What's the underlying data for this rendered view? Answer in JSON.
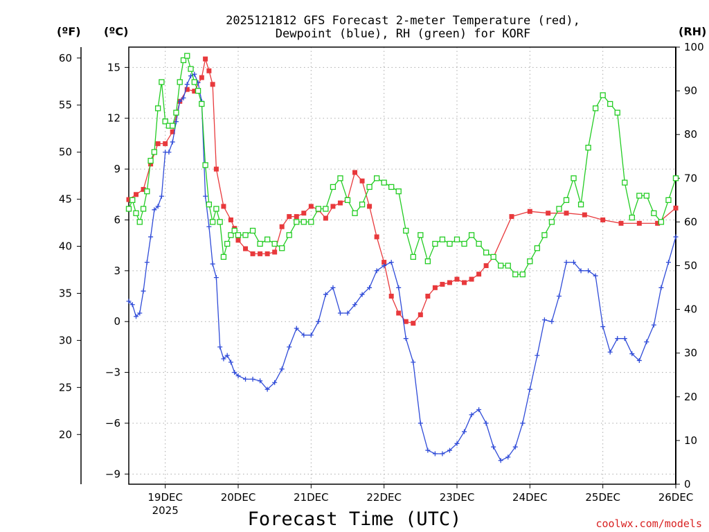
{
  "chart_data": {
    "type": "line",
    "title_line1": "2025121812 GFS Forecast 2-meter Temperature (red),",
    "title_line2": "Dewpoint (blue), RH (green) for KORF",
    "xlabel": "Forecast Time (UTC)",
    "credit": "coolwx.com/models",
    "unit_f": "(ºF)",
    "unit_c": "(ºC)",
    "unit_rh": "(RH)",
    "xlim": [
      -0.5,
      7.0
    ],
    "ylim_c": [
      -9.6,
      16.2
    ],
    "ylim_rh": [
      0,
      100
    ],
    "x_ticks": [
      {
        "x": 0,
        "label": "19DEC",
        "sub": "2025"
      },
      {
        "x": 1,
        "label": "20DEC",
        "sub": ""
      },
      {
        "x": 2,
        "label": "21DEC",
        "sub": ""
      },
      {
        "x": 3,
        "label": "22DEC",
        "sub": ""
      },
      {
        "x": 4,
        "label": "23DEC",
        "sub": ""
      },
      {
        "x": 5,
        "label": "24DEC",
        "sub": ""
      },
      {
        "x": 6,
        "label": "25DEC",
        "sub": ""
      },
      {
        "x": 7,
        "label": "26DEC",
        "sub": ""
      }
    ],
    "y_ticks_c": [
      -9,
      -6,
      -3,
      0,
      3,
      6,
      9,
      12,
      15
    ],
    "y_ticks_c_labels": [
      "−9",
      "−6",
      "−3",
      "0",
      "3",
      "6",
      "9",
      "12",
      "15"
    ],
    "y_ticks_f": [
      20,
      25,
      30,
      35,
      40,
      45,
      50,
      55,
      60
    ],
    "y_ticks_rh": [
      0,
      10,
      20,
      30,
      40,
      50,
      60,
      70,
      80,
      90,
      100
    ],
    "series": [
      {
        "name": "Temperature",
        "units": "C",
        "color": "#e8393c",
        "marker": "square-filled",
        "x": [
          -0.5,
          -0.4,
          -0.3,
          -0.2,
          -0.1,
          0.0,
          0.1,
          0.2,
          0.3,
          0.4,
          0.5,
          0.55,
          0.6,
          0.65,
          0.7,
          0.8,
          0.9,
          0.95,
          1.0,
          1.1,
          1.2,
          1.3,
          1.4,
          1.5,
          1.6,
          1.7,
          1.8,
          1.9,
          2.0,
          2.1,
          2.2,
          2.3,
          2.4,
          2.5,
          2.6,
          2.7,
          2.8,
          2.9,
          3.0,
          3.1,
          3.2,
          3.3,
          3.4,
          3.5,
          3.6,
          3.7,
          3.8,
          3.9,
          4.0,
          4.1,
          4.2,
          4.3,
          4.4,
          4.5,
          4.75,
          5.0,
          5.25,
          5.5,
          5.75,
          6.0,
          6.25,
          6.5,
          6.75,
          7.0
        ],
        "y": [
          7.2,
          7.5,
          7.8,
          9.3,
          10.5,
          10.5,
          11.2,
          13.0,
          13.7,
          13.6,
          14.4,
          15.5,
          14.8,
          14.0,
          9.0,
          6.8,
          6.0,
          5.5,
          4.8,
          4.3,
          4.0,
          4.0,
          4.0,
          4.1,
          5.6,
          6.2,
          6.2,
          6.4,
          6.8,
          6.6,
          6.1,
          6.8,
          7.0,
          7.2,
          8.8,
          8.3,
          6.8,
          5.0,
          3.5,
          1.5,
          0.5,
          0.0,
          -0.1,
          0.4,
          1.5,
          2.0,
          2.2,
          2.3,
          2.5,
          2.3,
          2.5,
          2.8,
          3.3,
          3.8,
          6.2,
          6.5,
          6.4,
          6.4,
          6.3,
          6.0,
          5.8,
          5.8,
          5.8,
          6.7
        ]
      },
      {
        "name": "Dewpoint",
        "units": "C",
        "color": "#2f4bd8",
        "marker": "plus",
        "x": [
          -0.5,
          -0.45,
          -0.4,
          -0.35,
          -0.3,
          -0.25,
          -0.2,
          -0.15,
          -0.1,
          -0.05,
          0.0,
          0.05,
          0.1,
          0.15,
          0.2,
          0.25,
          0.3,
          0.35,
          0.4,
          0.45,
          0.5,
          0.55,
          0.6,
          0.65,
          0.7,
          0.75,
          0.8,
          0.85,
          0.9,
          0.95,
          1.0,
          1.1,
          1.2,
          1.3,
          1.4,
          1.5,
          1.6,
          1.7,
          1.8,
          1.9,
          2.0,
          2.1,
          2.2,
          2.3,
          2.4,
          2.5,
          2.6,
          2.7,
          2.8,
          2.9,
          3.0,
          3.1,
          3.2,
          3.3,
          3.4,
          3.5,
          3.6,
          3.7,
          3.8,
          3.9,
          4.0,
          4.1,
          4.2,
          4.3,
          4.4,
          4.5,
          4.6,
          4.7,
          4.8,
          4.9,
          5.0,
          5.1,
          5.2,
          5.3,
          5.4,
          5.5,
          5.6,
          5.7,
          5.8,
          5.9,
          6.0,
          6.1,
          6.2,
          6.3,
          6.4,
          6.5,
          6.6,
          6.7,
          6.8,
          6.9,
          7.0
        ],
        "y": [
          1.2,
          1.0,
          0.3,
          0.5,
          1.8,
          3.5,
          5.0,
          6.6,
          6.8,
          7.4,
          10.0,
          10.0,
          10.6,
          11.8,
          13.0,
          13.2,
          14.0,
          14.5,
          14.6,
          14.1,
          13.0,
          7.4,
          5.6,
          3.4,
          2.6,
          -1.5,
          -2.2,
          -2.0,
          -2.4,
          -3.0,
          -3.2,
          -3.4,
          -3.4,
          -3.5,
          -4.0,
          -3.6,
          -2.8,
          -1.5,
          -0.4,
          -0.8,
          -0.8,
          0.0,
          1.6,
          2.0,
          0.5,
          0.5,
          1.0,
          1.6,
          2.0,
          3.0,
          3.3,
          3.5,
          2.0,
          -1.0,
          -2.4,
          -6.0,
          -7.6,
          -7.8,
          -7.8,
          -7.6,
          -7.2,
          -6.5,
          -5.5,
          -5.2,
          -6.0,
          -7.4,
          -8.2,
          -8.0,
          -7.4,
          -6.0,
          -4.0,
          -2.0,
          0.1,
          0.0,
          1.5,
          3.5,
          3.5,
          3.0,
          3.0,
          2.7,
          -0.3,
          -1.8,
          -1.0,
          -1.0,
          -1.9,
          -2.3,
          -1.2,
          -0.2,
          2.0,
          3.5,
          5.0
        ]
      },
      {
        "name": "RH",
        "units": "%",
        "color": "#22cc22",
        "marker": "square-open",
        "x": [
          -0.5,
          -0.45,
          -0.4,
          -0.35,
          -0.3,
          -0.25,
          -0.2,
          -0.15,
          -0.1,
          -0.05,
          0.0,
          0.05,
          0.1,
          0.15,
          0.2,
          0.25,
          0.3,
          0.35,
          0.4,
          0.45,
          0.5,
          0.55,
          0.6,
          0.65,
          0.7,
          0.75,
          0.8,
          0.85,
          0.9,
          0.95,
          1.0,
          1.1,
          1.2,
          1.3,
          1.4,
          1.5,
          1.6,
          1.7,
          1.8,
          1.9,
          2.0,
          2.1,
          2.2,
          2.3,
          2.4,
          2.5,
          2.6,
          2.7,
          2.8,
          2.9,
          3.0,
          3.1,
          3.2,
          3.3,
          3.4,
          3.5,
          3.6,
          3.7,
          3.8,
          3.9,
          4.0,
          4.1,
          4.2,
          4.3,
          4.4,
          4.5,
          4.6,
          4.7,
          4.8,
          4.9,
          5.0,
          5.1,
          5.2,
          5.3,
          5.4,
          5.5,
          5.6,
          5.7,
          5.8,
          5.9,
          6.0,
          6.1,
          6.2,
          6.3,
          6.4,
          6.5,
          6.6,
          6.7,
          6.8,
          6.9,
          7.0
        ],
        "y": [
          63,
          65,
          62,
          60,
          63,
          67,
          74,
          76,
          86,
          92,
          83,
          82,
          82,
          85,
          92,
          97,
          98,
          95,
          92,
          90,
          87,
          73,
          64,
          60,
          63,
          60,
          52,
          55,
          57,
          58,
          57,
          57,
          58,
          55,
          56,
          55,
          54,
          57,
          60,
          60,
          60,
          63,
          63,
          68,
          70,
          65,
          62,
          64,
          68,
          70,
          69,
          68,
          67,
          58,
          52,
          57,
          51,
          55,
          56,
          55,
          56,
          55,
          57,
          55,
          53,
          52,
          50,
          50,
          48,
          48,
          51,
          54,
          57,
          60,
          63,
          65,
          70,
          64,
          77,
          86,
          89,
          87,
          85,
          69,
          61,
          66,
          66,
          62,
          60,
          65,
          70
        ]
      }
    ]
  }
}
